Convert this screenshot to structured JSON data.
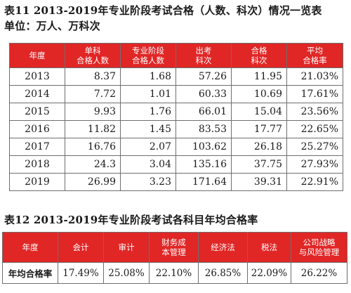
{
  "table1": {
    "caption": "表11  2013-2019年专业阶段考试合格（人数、科次）情况一览表",
    "unit": "单位：万人、万科次",
    "headers": [
      [
        "年度"
      ],
      [
        "单科",
        "合格人数"
      ],
      [
        "专业阶段",
        "合格人数"
      ],
      [
        "出考",
        "科次"
      ],
      [
        "合格",
        "科次"
      ],
      [
        "平均",
        "合格率"
      ]
    ],
    "rows": [
      [
        "2013",
        "8.37",
        "1.68",
        "57.26",
        "11.95",
        "21.03%"
      ],
      [
        "2014",
        "7.72",
        "1.01",
        "60.33",
        "10.69",
        "17.61%"
      ],
      [
        "2015",
        "9.93",
        "1.76",
        "66.01",
        "15.04",
        "23.56%"
      ],
      [
        "2016",
        "11.82",
        "1.45",
        "83.53",
        "17.77",
        "22.65%"
      ],
      [
        "2017",
        "16.76",
        "2.07",
        "103.62",
        "26.18",
        "25.27%"
      ],
      [
        "2018",
        "24.3",
        "3.04",
        "135.16",
        "37.75",
        "27.93%"
      ],
      [
        "2019",
        "26.99",
        "3.23",
        "171.64",
        "39.31",
        "22.91%"
      ]
    ]
  },
  "table2": {
    "caption": "表12  2013-2019年专业阶段考试各科目年均合格率",
    "headers": [
      [
        "年度"
      ],
      [
        "会计"
      ],
      [
        "审计"
      ],
      [
        "财务成",
        "本管理"
      ],
      [
        "经济法"
      ],
      [
        "税法"
      ],
      [
        "公司战略",
        "与风险管理"
      ]
    ],
    "row": [
      "年均合格率",
      "17.49%",
      "25.08%",
      "22.10%",
      "26.85%",
      "22.09%",
      "26.22%"
    ]
  },
  "colors": {
    "header_bg": "#e12626",
    "header_text": "#ffffff",
    "border": "#6e6e6e"
  }
}
